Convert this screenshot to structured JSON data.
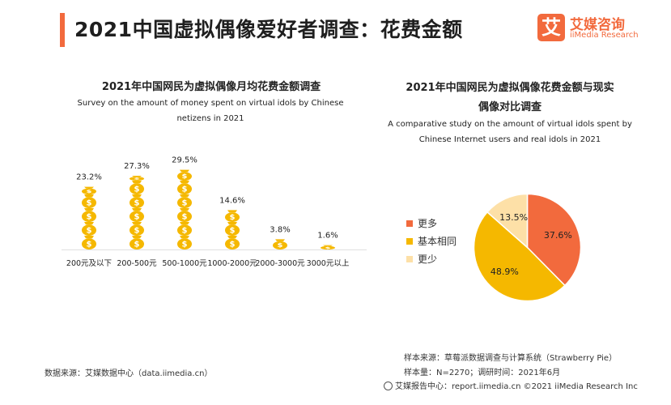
{
  "header": {
    "title": "2021中国虚拟偶像爱好者调查：花费金额",
    "accent_color": "#f26a3d"
  },
  "logo": {
    "mark": "艾",
    "name_cn": "艾媒咨询",
    "name_en": "iiMedia Research"
  },
  "left_chart": {
    "title_cn": "2021年中国网民为虚拟偶像月均花费金额调查",
    "title_en": "Survey on the amount of money spent on virtual idols by Chinese netizens in 2021"
  },
  "right_chart": {
    "title_cn_line1": "2021年中国网民为虚拟偶像花费金额与现实",
    "title_cn_line2": "偶像对比调查",
    "title_en": "A comparative study on the amount of virtual idols spent by Chinese Internet users and real idols in 2021"
  },
  "chart_data": [
    {
      "type": "bar",
      "categories": [
        "200元及以下",
        "200-500元",
        "500-1000元",
        "1000-2000元",
        "2000-3000元",
        "3000元以上"
      ],
      "values": [
        23.2,
        27.3,
        29.5,
        14.6,
        3.8,
        1.6
      ],
      "value_labels": [
        "23.2%",
        "27.3%",
        "29.5%",
        "14.6%",
        "3.8%",
        "1.6%"
      ],
      "unit": "%",
      "marker": "money-bag-icon",
      "color": "#f5b800",
      "ylim": [
        0,
        30
      ]
    },
    {
      "type": "pie",
      "labels": [
        "更多",
        "基本相同",
        "更少"
      ],
      "values": [
        37.6,
        48.9,
        13.5
      ],
      "value_labels": [
        "37.6%",
        "48.9%",
        "13.5%"
      ],
      "colors": [
        "#f26a3d",
        "#f5b800",
        "#fde0a7"
      ],
      "legend_position": "left"
    }
  ],
  "footer": {
    "source_left": "数据来源：艾媒数据中心（data.iimedia.cn）",
    "sample_source": "样本来源：草莓派数据调查与计算系统（Strawberry Pie）",
    "sample_size": "样本量：N=2270；调研时间：2021年6月",
    "copyright": "艾媒报告中心：report.iimedia.cn  ©2021  iiMedia Research  Inc"
  }
}
